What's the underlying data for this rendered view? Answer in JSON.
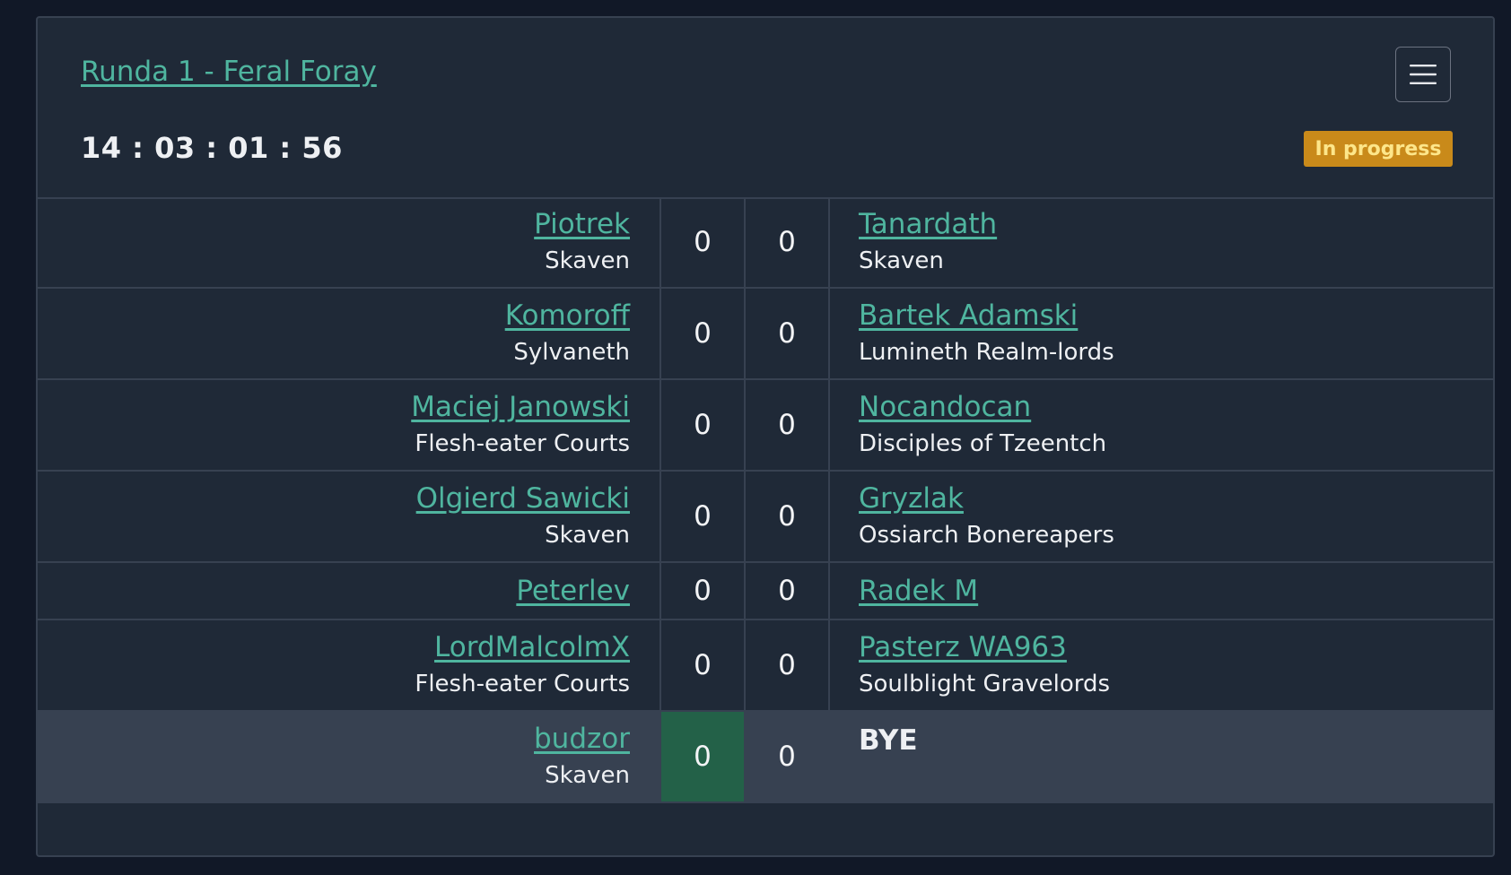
{
  "round": {
    "title": "Runda 1 - Feral Foray",
    "timer": "14 : 03 : 01 : 56",
    "status": "In progress",
    "menu_icon": "hamburger-menu-icon"
  },
  "colors": {
    "link": "#4fb59f",
    "badge": "#c98a1a",
    "winner_score": "#236148",
    "background": "#1f2937"
  },
  "pairings": [
    {
      "left_name": "Piotrek",
      "left_faction": "Skaven",
      "left_score": "0",
      "right_score": "0",
      "right_name": "Tanardath",
      "right_faction": "Skaven"
    },
    {
      "left_name": "Komoroff",
      "left_faction": "Sylvaneth",
      "left_score": "0",
      "right_score": "0",
      "right_name": "Bartek Adamski",
      "right_faction": "Lumineth Realm-lords"
    },
    {
      "left_name": "Maciej Janowski",
      "left_faction": "Flesh-eater Courts",
      "left_score": "0",
      "right_score": "0",
      "right_name": "Nocandocan",
      "right_faction": "Disciples of Tzeentch"
    },
    {
      "left_name": "Olgierd Sawicki",
      "left_faction": "Skaven",
      "left_score": "0",
      "right_score": "0",
      "right_name": "Gryzlak",
      "right_faction": "Ossiarch Bonereapers"
    },
    {
      "left_name": "Peterlev",
      "left_faction": "",
      "left_score": "0",
      "right_score": "0",
      "right_name": "Radek M",
      "right_faction": ""
    },
    {
      "left_name": "LordMalcolmX",
      "left_faction": "Flesh-eater Courts",
      "left_score": "0",
      "right_score": "0",
      "right_name": "Pasterz WA963",
      "right_faction": "Soulblight Gravelords"
    },
    {
      "left_name": "budzor",
      "left_faction": "Skaven",
      "left_score": "0",
      "right_score": "0",
      "right_text": "BYE"
    }
  ]
}
